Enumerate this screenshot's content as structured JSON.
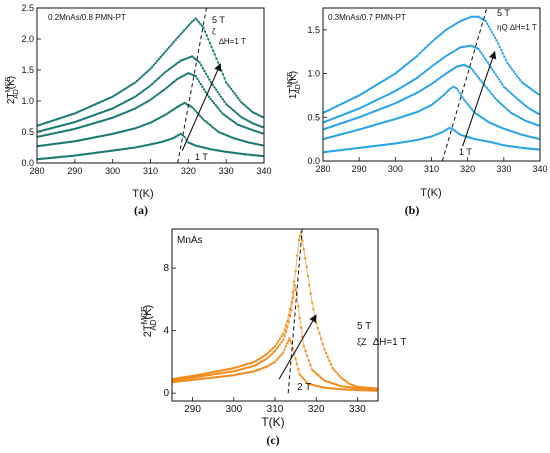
{
  "chart_data": [
    {
      "panel": "(a)",
      "type": "scatter",
      "material": "0.2MnAs/0.8 PMN-PT",
      "ylabel": "2T",
      "ylabel_sup": "MCE",
      "ylabel_sub": "AD",
      "ylabel_tail": "(K)",
      "xlabel": "T(K)",
      "xlim": [
        280,
        340
      ],
      "ylim": [
        0,
        2.5
      ],
      "xticks": [
        280,
        290,
        300,
        310,
        320,
        330,
        340
      ],
      "yticks": [
        0.0,
        0.5,
        1.0,
        1.5,
        2.0,
        2.5
      ],
      "ytick_labels": [
        "0.0",
        "0.5",
        "1.0",
        "1.5",
        "2.0",
        "2.5"
      ],
      "color": "#1a7a72",
      "arrow_from": [
        318.4,
        0.2
      ],
      "arrow_to": [
        328.5,
        1.6
      ],
      "annotations": [
        "5 T",
        "ζ",
        "∆H=1 T",
        "1 T"
      ],
      "dashed_line": [
        [
          317.2,
          0.0
        ],
        [
          324.8,
          2.5
        ]
      ],
      "series": [
        {
          "points": [
            [
              280,
              0.06
            ],
            [
              290,
              0.12
            ],
            [
              300,
              0.2
            ],
            [
              306,
              0.25
            ],
            [
              310,
              0.3
            ],
            [
              313,
              0.34
            ],
            [
              316,
              0.4
            ],
            [
              318,
              0.47
            ],
            [
              319,
              0.42
            ],
            [
              320,
              0.33
            ],
            [
              322,
              0.28
            ],
            [
              326,
              0.22
            ],
            [
              330,
              0.18
            ],
            [
              335,
              0.14
            ],
            [
              340,
              0.11
            ]
          ]
        },
        {
          "points": [
            [
              280,
              0.27
            ],
            [
              290,
              0.35
            ],
            [
              300,
              0.47
            ],
            [
              306,
              0.56
            ],
            [
              310,
              0.65
            ],
            [
              314,
              0.78
            ],
            [
              317,
              0.9
            ],
            [
              319,
              0.97
            ],
            [
              321,
              0.9
            ],
            [
              324,
              0.7
            ],
            [
              328,
              0.5
            ],
            [
              332,
              0.4
            ],
            [
              336,
              0.33
            ],
            [
              340,
              0.28
            ]
          ]
        },
        {
          "points": [
            [
              280,
              0.42
            ],
            [
              290,
              0.55
            ],
            [
              300,
              0.73
            ],
            [
              306,
              0.88
            ],
            [
              310,
              1.02
            ],
            [
              314,
              1.2
            ],
            [
              317,
              1.35
            ],
            [
              320,
              1.45
            ],
            [
              322,
              1.4
            ],
            [
              325,
              1.1
            ],
            [
              329,
              0.8
            ],
            [
              333,
              0.62
            ],
            [
              337,
              0.53
            ],
            [
              340,
              0.47
            ]
          ]
        },
        {
          "points": [
            [
              280,
              0.5
            ],
            [
              290,
              0.66
            ],
            [
              300,
              0.88
            ],
            [
              306,
              1.07
            ],
            [
              310,
              1.25
            ],
            [
              314,
              1.47
            ],
            [
              318,
              1.65
            ],
            [
              321,
              1.72
            ],
            [
              323,
              1.62
            ],
            [
              326,
              1.3
            ],
            [
              330,
              0.95
            ],
            [
              334,
              0.74
            ],
            [
              337,
              0.64
            ],
            [
              340,
              0.57
            ]
          ]
        },
        {
          "points": [
            [
              280,
              0.6
            ],
            [
              290,
              0.8
            ],
            [
              300,
              1.07
            ],
            [
              306,
              1.3
            ],
            [
              310,
              1.52
            ],
            [
              314,
              1.8
            ],
            [
              318,
              2.08
            ],
            [
              321,
              2.28
            ],
            [
              322,
              2.33
            ],
            [
              324,
              2.18
            ],
            [
              327,
              1.75
            ],
            [
              330,
              1.3
            ],
            [
              334,
              0.98
            ],
            [
              337,
              0.82
            ],
            [
              340,
              0.73
            ]
          ]
        }
      ]
    },
    {
      "panel": "(b)",
      "type": "scatter",
      "material": "0.3MnAs/0.7 PMN-PT",
      "ylabel": "1T",
      "ylabel_sup": "MCE",
      "ylabel_sub": "AD",
      "ylabel_tail": "(K)",
      "xlabel": "T(K)",
      "xlim": [
        280,
        340
      ],
      "ylim": [
        0,
        1.75
      ],
      "xticks": [
        280,
        290,
        300,
        310,
        320,
        330,
        340
      ],
      "yticks": [
        0.0,
        0.5,
        1.0,
        1.5
      ],
      "ytick_labels": [
        "0.0",
        "0.5",
        "1.0",
        "1.5"
      ],
      "color": "#29a3e6",
      "arrow_from": [
        318.6,
        0.17
      ],
      "arrow_to": [
        327.5,
        1.25
      ],
      "annotations": [
        "5 T",
        "ηQ",
        "∆H=1 T",
        "1 T"
      ],
      "dashed_line": [
        [
          313.0,
          0.0
        ],
        [
          325.3,
          1.75
        ]
      ],
      "series": [
        {
          "points": [
            [
              280,
              0.1
            ],
            [
              290,
              0.15
            ],
            [
              300,
              0.2
            ],
            [
              306,
              0.24
            ],
            [
              310,
              0.28
            ],
            [
              313,
              0.33
            ],
            [
              315,
              0.38
            ],
            [
              316,
              0.36
            ],
            [
              318,
              0.3
            ],
            [
              322,
              0.25
            ],
            [
              326,
              0.22
            ],
            [
              330,
              0.18
            ],
            [
              335,
              0.15
            ],
            [
              340,
              0.13
            ]
          ]
        },
        {
          "points": [
            [
              280,
              0.25
            ],
            [
              290,
              0.36
            ],
            [
              300,
              0.48
            ],
            [
              306,
              0.56
            ],
            [
              310,
              0.64
            ],
            [
              313,
              0.74
            ],
            [
              315,
              0.82
            ],
            [
              316,
              0.85
            ],
            [
              317,
              0.83
            ],
            [
              319,
              0.7
            ],
            [
              322,
              0.55
            ],
            [
              326,
              0.44
            ],
            [
              330,
              0.37
            ],
            [
              335,
              0.3
            ],
            [
              340,
              0.25
            ]
          ]
        },
        {
          "points": [
            [
              280,
              0.36
            ],
            [
              290,
              0.5
            ],
            [
              300,
              0.66
            ],
            [
              306,
              0.78
            ],
            [
              310,
              0.88
            ],
            [
              314,
              1.0
            ],
            [
              317,
              1.08
            ],
            [
              319,
              1.1
            ],
            [
              321,
              1.06
            ],
            [
              324,
              0.9
            ],
            [
              328,
              0.7
            ],
            [
              332,
              0.55
            ],
            [
              336,
              0.46
            ],
            [
              340,
              0.4
            ]
          ]
        },
        {
          "points": [
            [
              280,
              0.44
            ],
            [
              290,
              0.6
            ],
            [
              300,
              0.8
            ],
            [
              306,
              0.95
            ],
            [
              310,
              1.08
            ],
            [
              314,
              1.2
            ],
            [
              318,
              1.3
            ],
            [
              321,
              1.32
            ],
            [
              323,
              1.28
            ],
            [
              326,
              1.1
            ],
            [
              330,
              0.85
            ],
            [
              334,
              0.7
            ],
            [
              337,
              0.6
            ],
            [
              340,
              0.53
            ]
          ]
        },
        {
          "points": [
            [
              280,
              0.55
            ],
            [
              290,
              0.75
            ],
            [
              300,
              1.0
            ],
            [
              306,
              1.2
            ],
            [
              310,
              1.36
            ],
            [
              314,
              1.5
            ],
            [
              318,
              1.6
            ],
            [
              321,
              1.65
            ],
            [
              323,
              1.65
            ],
            [
              325,
              1.6
            ],
            [
              328,
              1.38
            ],
            [
              331,
              1.12
            ],
            [
              335,
              0.9
            ],
            [
              340,
              0.75
            ]
          ]
        }
      ]
    },
    {
      "panel": "(c)",
      "type": "scatter",
      "material": "MnAs",
      "ylabel": "2T",
      "ylabel_sup": "MCE",
      "ylabel_sub": "AD",
      "ylabel_tail": "(K)",
      "xlabel": "T(K)",
      "xlim": [
        285,
        335
      ],
      "ylim": [
        -0.5,
        10.5
      ],
      "xticks": [
        290,
        300,
        310,
        320,
        330
      ],
      "yticks": [
        0,
        4,
        8
      ],
      "ytick_labels": [
        "0",
        "4",
        "8"
      ],
      "color": "#f28c1e",
      "arrow_from": [
        311.0,
        0.9
      ],
      "arrow_to": [
        320.0,
        5.0
      ],
      "annotations": [
        "5 T",
        "ξZ",
        "∆H=1 T",
        "2 T"
      ],
      "dashed_line": [
        [
          313.2,
          0.0
        ],
        [
          316.6,
          10.5
        ]
      ],
      "series": [
        {
          "points": [
            [
              285,
              0.7
            ],
            [
              290,
              0.85
            ],
            [
              295,
              1.0
            ],
            [
              300,
              1.15
            ],
            [
              305,
              1.4
            ],
            [
              308,
              1.7
            ],
            [
              310,
              2.0
            ],
            [
              312,
              2.6
            ],
            [
              313,
              3.2
            ],
            [
              313.5,
              3.5
            ],
            [
              314,
              3.2
            ],
            [
              315,
              2.2
            ],
            [
              316,
              1.2
            ],
            [
              318,
              0.6
            ],
            [
              322,
              0.35
            ],
            [
              326,
              0.25
            ],
            [
              330,
              0.2
            ],
            [
              335,
              0.15
            ]
          ]
        },
        {
          "points": [
            [
              285,
              0.8
            ],
            [
              290,
              1.0
            ],
            [
              295,
              1.2
            ],
            [
              300,
              1.4
            ],
            [
              305,
              1.75
            ],
            [
              308,
              2.2
            ],
            [
              310,
              2.7
            ],
            [
              312,
              3.4
            ],
            [
              313,
              4.2
            ],
            [
              314,
              5.3
            ],
            [
              314.8,
              6.9
            ],
            [
              315.3,
              6.3
            ],
            [
              316,
              4.8
            ],
            [
              317,
              3.0
            ],
            [
              319,
              1.5
            ],
            [
              322,
              0.8
            ],
            [
              326,
              0.45
            ],
            [
              330,
              0.32
            ],
            [
              335,
              0.25
            ]
          ]
        },
        {
          "points": [
            [
              285,
              0.9
            ],
            [
              290,
              1.1
            ],
            [
              295,
              1.35
            ],
            [
              300,
              1.6
            ],
            [
              305,
              2.0
            ],
            [
              308,
              2.5
            ],
            [
              310,
              3.0
            ],
            [
              312,
              3.8
            ],
            [
              313,
              4.6
            ],
            [
              314,
              5.8
            ],
            [
              315,
              7.8
            ],
            [
              315.8,
              9.8
            ],
            [
              316.3,
              10.3
            ],
            [
              317,
              9.2
            ],
            [
              318,
              7.5
            ],
            [
              319,
              5.8
            ],
            [
              320,
              4.5
            ],
            [
              322,
              2.8
            ],
            [
              324,
              1.6
            ],
            [
              326,
              1.0
            ],
            [
              328,
              0.6
            ],
            [
              330,
              0.4
            ],
            [
              335,
              0.3
            ]
          ]
        }
      ]
    }
  ]
}
